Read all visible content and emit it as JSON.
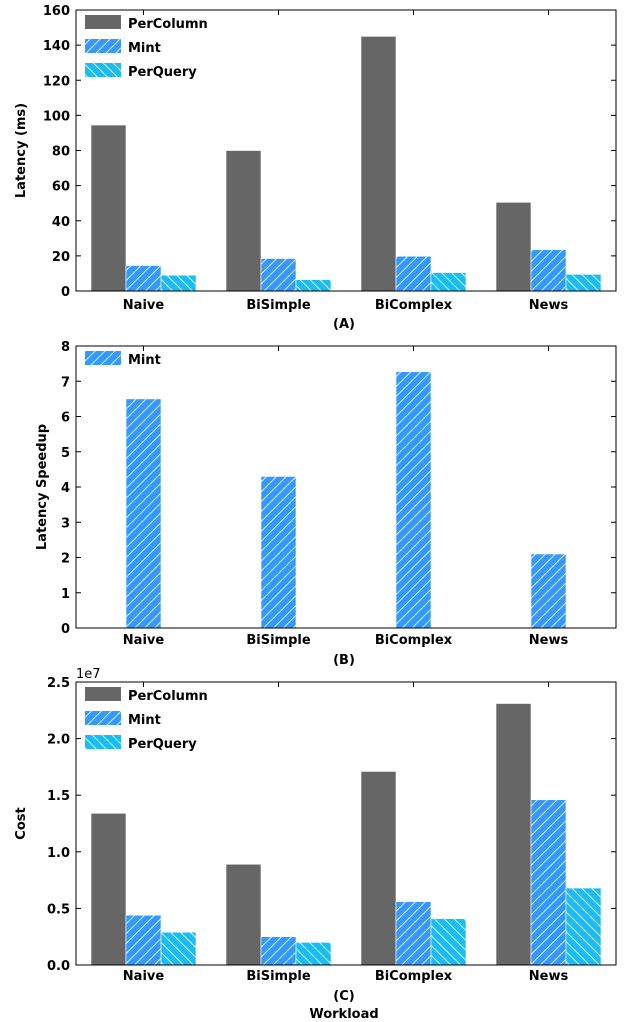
{
  "colors": {
    "percolumn": "#666666",
    "mint": "#3399ff",
    "perquery": "#1abcf5"
  },
  "chart_data": [
    {
      "panel_label": "(A)",
      "type": "bar",
      "categories": [
        "Naive",
        "BiSimple",
        "BiComplex",
        "News"
      ],
      "ylabel": "Latency (ms)",
      "xlabel": "",
      "ylim": [
        0,
        160
      ],
      "yticks": [
        0,
        20,
        40,
        60,
        80,
        100,
        120,
        140,
        160
      ],
      "ytick_labels": [
        "0",
        "20",
        "40",
        "60",
        "80",
        "100",
        "120",
        "140",
        "160"
      ],
      "legend_position": "top-left",
      "series": [
        {
          "name": "PerColumn",
          "key": "percolumn",
          "values": [
            94.5,
            80,
            145,
            50.5
          ]
        },
        {
          "name": "Mint",
          "key": "mint",
          "values": [
            14.5,
            18.5,
            19.8,
            23.5
          ]
        },
        {
          "name": "PerQuery",
          "key": "perquery",
          "values": [
            9,
            6.5,
            10.5,
            9.5
          ]
        }
      ]
    },
    {
      "panel_label": "(B)",
      "type": "bar",
      "categories": [
        "Naive",
        "BiSimple",
        "BiComplex",
        "News"
      ],
      "ylabel": "Latency Speedup",
      "xlabel": "",
      "ylim": [
        0,
        8
      ],
      "yticks": [
        0,
        1,
        2,
        3,
        4,
        5,
        6,
        7,
        8
      ],
      "ytick_labels": [
        "0",
        "1",
        "2",
        "3",
        "4",
        "5",
        "6",
        "7",
        "8"
      ],
      "legend_position": "top-left",
      "series": [
        {
          "name": "Mint",
          "key": "mint",
          "values": [
            6.5,
            4.3,
            7.27,
            2.1
          ]
        }
      ]
    },
    {
      "panel_label": "(C)",
      "type": "bar",
      "categories": [
        "Naive",
        "BiSimple",
        "BiComplex",
        "News"
      ],
      "ylabel": "Cost",
      "xlabel": "Workload",
      "offset_label": "1e7",
      "ylim": [
        0,
        2.5
      ],
      "yticks": [
        0,
        0.5,
        1.0,
        1.5,
        2.0,
        2.5
      ],
      "ytick_labels": [
        "0.0",
        "0.5",
        "1.0",
        "1.5",
        "2.0",
        "2.5"
      ],
      "legend_position": "top-left",
      "series": [
        {
          "name": "PerColumn",
          "key": "percolumn",
          "values": [
            1.34,
            0.89,
            1.71,
            2.31
          ]
        },
        {
          "name": "Mint",
          "key": "mint",
          "values": [
            0.44,
            0.25,
            0.56,
            1.46
          ]
        },
        {
          "name": "PerQuery",
          "key": "perquery",
          "values": [
            0.29,
            0.2,
            0.41,
            0.68
          ]
        }
      ]
    }
  ]
}
